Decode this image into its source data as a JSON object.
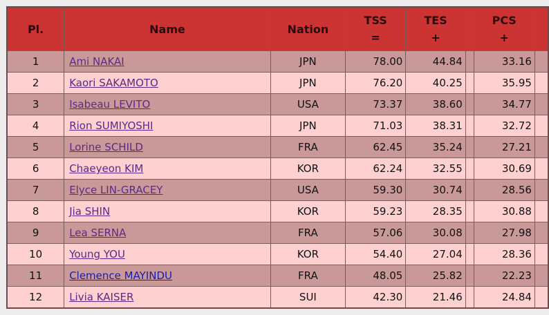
{
  "headers": {
    "place": "Pl.",
    "name": "Name",
    "nation": "Nation",
    "tss": "TSS",
    "tss_op": "=",
    "tes": "TES",
    "tes_op": "+",
    "pcs": "PCS",
    "pcs_op": "+"
  },
  "rows": [
    {
      "pl": "1",
      "name": "Ami NAKAI",
      "nation": "JPN",
      "tss": "78.00",
      "tes": "44.84",
      "pcs": "33.16",
      "visited": true
    },
    {
      "pl": "2",
      "name": "Kaori SAKAMOTO",
      "nation": "JPN",
      "tss": "76.20",
      "tes": "40.25",
      "pcs": "35.95",
      "visited": true
    },
    {
      "pl": "3",
      "name": "Isabeau LEVITO",
      "nation": "USA",
      "tss": "73.37",
      "tes": "38.60",
      "pcs": "34.77",
      "visited": true
    },
    {
      "pl": "4",
      "name": "Rion SUMIYOSHI",
      "nation": "JPN",
      "tss": "71.03",
      "tes": "38.31",
      "pcs": "32.72",
      "visited": true
    },
    {
      "pl": "5",
      "name": "Lorine SCHILD",
      "nation": "FRA",
      "tss": "62.45",
      "tes": "35.24",
      "pcs": "27.21",
      "visited": true
    },
    {
      "pl": "6",
      "name": "Chaeyeon KIM",
      "nation": "KOR",
      "tss": "62.24",
      "tes": "32.55",
      "pcs": "30.69",
      "visited": true
    },
    {
      "pl": "7",
      "name": "Elyce LIN-GRACEY",
      "nation": "USA",
      "tss": "59.30",
      "tes": "30.74",
      "pcs": "28.56",
      "visited": true
    },
    {
      "pl": "8",
      "name": "Jia SHIN",
      "nation": "KOR",
      "tss": "59.23",
      "tes": "28.35",
      "pcs": "30.88",
      "visited": true
    },
    {
      "pl": "9",
      "name": "Lea SERNA",
      "nation": "FRA",
      "tss": "57.06",
      "tes": "30.08",
      "pcs": "27.98",
      "visited": true
    },
    {
      "pl": "10",
      "name": "Young YOU",
      "nation": "KOR",
      "tss": "54.40",
      "tes": "27.04",
      "pcs": "28.36",
      "visited": true
    },
    {
      "pl": "11",
      "name": "Clemence MAYINDU",
      "nation": "FRA",
      "tss": "48.05",
      "tes": "25.82",
      "pcs": "22.23",
      "visited": false
    },
    {
      "pl": "12",
      "name": "Livia KAISER",
      "nation": "SUI",
      "tss": "42.30",
      "tes": "21.46",
      "pcs": "24.84",
      "visited": true
    }
  ],
  "colors": {
    "header": "#cc3333",
    "row_odd": "#c99999",
    "row_even": "#ffd0d0",
    "link_visited": "#5b2a86",
    "link": "#1a1ab0"
  }
}
